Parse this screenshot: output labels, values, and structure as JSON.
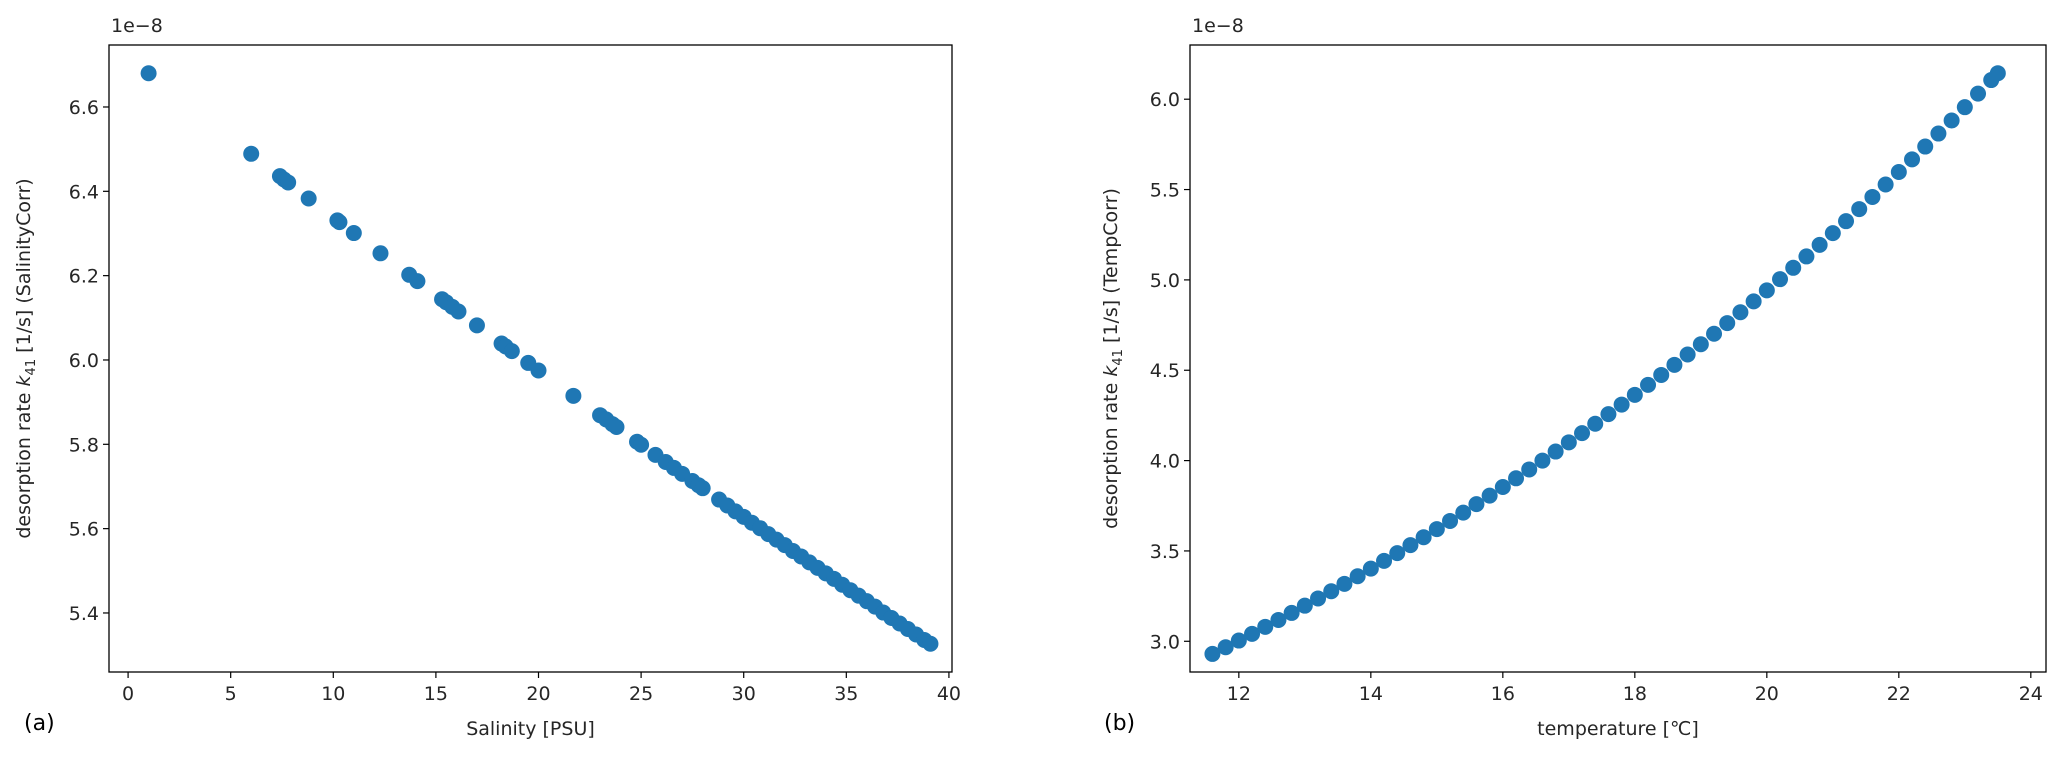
{
  "chart_data": [
    {
      "type": "scatter",
      "panel_label": "(a)",
      "offset_text": "1e−8",
      "xlabel": "Salinity [PSU]",
      "ylabel": {
        "prefix": "desorption rate ",
        "symbol": "k",
        "subscript": "41",
        "suffix": " [1/s] (SalinityCorr)"
      },
      "xlim": [
        -0.93,
        40.15
      ],
      "ylim": [
        5.26,
        6.747
      ],
      "xticks": [
        0,
        5,
        10,
        15,
        20,
        25,
        30,
        35,
        40
      ],
      "xtick_labels": [
        "0",
        "5",
        "10",
        "15",
        "20",
        "25",
        "30",
        "35",
        "40"
      ],
      "yticks": [
        5.4,
        5.6,
        5.8,
        6.0,
        6.2,
        6.4,
        6.6
      ],
      "ytick_labels": [
        "5.4",
        "5.6",
        "5.8",
        "6.0",
        "6.2",
        "6.4",
        "6.6"
      ],
      "y_scale": "1e-8",
      "grid": false,
      "color": "#1f77b4",
      "points": [
        [
          1,
          6.68
        ],
        [
          6,
          6.489
        ],
        [
          7.4,
          6.436
        ],
        [
          7.6,
          6.428
        ],
        [
          7.8,
          6.421
        ],
        [
          8.8,
          6.383
        ],
        [
          10.2,
          6.331
        ],
        [
          10.3,
          6.327
        ],
        [
          11.0,
          6.301
        ],
        [
          12.3,
          6.253
        ],
        [
          13.7,
          6.202
        ],
        [
          14.1,
          6.187
        ],
        [
          15.3,
          6.144
        ],
        [
          15.5,
          6.137
        ],
        [
          15.8,
          6.126
        ],
        [
          16.1,
          6.115
        ],
        [
          17.0,
          6.082
        ],
        [
          18.2,
          6.039
        ],
        [
          18.4,
          6.032
        ],
        [
          18.7,
          6.021
        ],
        [
          19.5,
          5.993
        ],
        [
          20.0,
          5.975
        ],
        [
          21.7,
          5.915
        ],
        [
          23.0,
          5.869
        ],
        [
          23.3,
          5.859
        ],
        [
          23.6,
          5.848
        ],
        [
          23.8,
          5.841
        ],
        [
          24.8,
          5.806
        ],
        [
          25.0,
          5.799
        ],
        [
          25.7,
          5.775
        ],
        [
          26.2,
          5.758
        ],
        [
          26.6,
          5.744
        ],
        [
          27.0,
          5.73
        ],
        [
          27.5,
          5.713
        ],
        [
          27.8,
          5.703
        ],
        [
          28.0,
          5.696
        ],
        [
          28.8,
          5.669
        ],
        [
          29.2,
          5.655
        ],
        [
          29.6,
          5.641
        ],
        [
          30.0,
          5.628
        ],
        [
          30.4,
          5.614
        ],
        [
          30.8,
          5.601
        ],
        [
          31.2,
          5.587
        ],
        [
          31.6,
          5.574
        ],
        [
          32.0,
          5.561
        ],
        [
          32.4,
          5.547
        ],
        [
          32.8,
          5.534
        ],
        [
          33.2,
          5.52
        ],
        [
          33.6,
          5.507
        ],
        [
          34.0,
          5.494
        ],
        [
          34.4,
          5.481
        ],
        [
          34.8,
          5.467
        ],
        [
          35.2,
          5.454
        ],
        [
          35.6,
          5.441
        ],
        [
          36.0,
          5.428
        ],
        [
          36.4,
          5.415
        ],
        [
          36.8,
          5.401
        ],
        [
          37.2,
          5.388
        ],
        [
          37.6,
          5.375
        ],
        [
          38.0,
          5.362
        ],
        [
          38.4,
          5.349
        ],
        [
          38.8,
          5.336
        ],
        [
          39.1,
          5.327
        ]
      ]
    },
    {
      "type": "scatter",
      "panel_label": "(b)",
      "offset_text": "1e−8",
      "xlabel": "temperature [℃]",
      "ylabel": {
        "prefix": "desorption rate ",
        "symbol": "k",
        "subscript": "41",
        "suffix": " [1/s] (TempCorr)"
      },
      "xlim": [
        11.26,
        24.23
      ],
      "ylim": [
        2.83,
        6.3
      ],
      "xticks": [
        12,
        14,
        16,
        18,
        20,
        22,
        24
      ],
      "xtick_labels": [
        "12",
        "14",
        "16",
        "18",
        "20",
        "22",
        "24"
      ],
      "yticks": [
        3.0,
        3.5,
        4.0,
        4.5,
        5.0,
        5.5,
        6.0
      ],
      "ytick_labels": [
        "3.0",
        "3.5",
        "4.0",
        "4.5",
        "5.0",
        "5.5",
        "6.0"
      ],
      "y_scale": "1e-8",
      "grid": false,
      "color": "#1f77b4",
      "points": [
        [
          11.6,
          2.93
        ],
        [
          11.8,
          2.967
        ],
        [
          12.0,
          3.004
        ],
        [
          12.2,
          3.041
        ],
        [
          12.4,
          3.08
        ],
        [
          12.6,
          3.118
        ],
        [
          12.8,
          3.157
        ],
        [
          13.0,
          3.197
        ],
        [
          13.2,
          3.237
        ],
        [
          13.4,
          3.277
        ],
        [
          13.6,
          3.318
        ],
        [
          13.8,
          3.36
        ],
        [
          14.0,
          3.402
        ],
        [
          14.2,
          3.445
        ],
        [
          14.4,
          3.488
        ],
        [
          14.6,
          3.532
        ],
        [
          14.8,
          3.576
        ],
        [
          15.0,
          3.621
        ],
        [
          15.2,
          3.666
        ],
        [
          15.4,
          3.712
        ],
        [
          15.6,
          3.759
        ],
        [
          15.8,
          3.806
        ],
        [
          16.0,
          3.854
        ],
        [
          16.2,
          3.902
        ],
        [
          16.4,
          3.951
        ],
        [
          16.6,
          4.0
        ],
        [
          16.8,
          4.05
        ],
        [
          17.0,
          4.101
        ],
        [
          17.2,
          4.152
        ],
        [
          17.4,
          4.204
        ],
        [
          17.6,
          4.257
        ],
        [
          17.8,
          4.31
        ],
        [
          18.0,
          4.364
        ],
        [
          18.2,
          4.419
        ],
        [
          18.4,
          4.474
        ],
        [
          18.6,
          4.53
        ],
        [
          18.8,
          4.587
        ],
        [
          19.0,
          4.644
        ],
        [
          19.2,
          4.702
        ],
        [
          19.4,
          4.761
        ],
        [
          19.6,
          4.821
        ],
        [
          19.8,
          4.881
        ],
        [
          20.0,
          4.942
        ],
        [
          20.2,
          5.004
        ],
        [
          20.4,
          5.067
        ],
        [
          20.6,
          5.13
        ],
        [
          20.8,
          5.194
        ],
        [
          21.0,
          5.259
        ],
        [
          21.2,
          5.325
        ],
        [
          21.4,
          5.392
        ],
        [
          21.6,
          5.459
        ],
        [
          21.8,
          5.528
        ],
        [
          22.0,
          5.597
        ],
        [
          22.2,
          5.667
        ],
        [
          22.4,
          5.738
        ],
        [
          22.6,
          5.81
        ],
        [
          22.8,
          5.882
        ],
        [
          23.0,
          5.956
        ],
        [
          23.2,
          6.031
        ],
        [
          23.4,
          6.106
        ],
        [
          23.5,
          6.144
        ]
      ]
    }
  ]
}
